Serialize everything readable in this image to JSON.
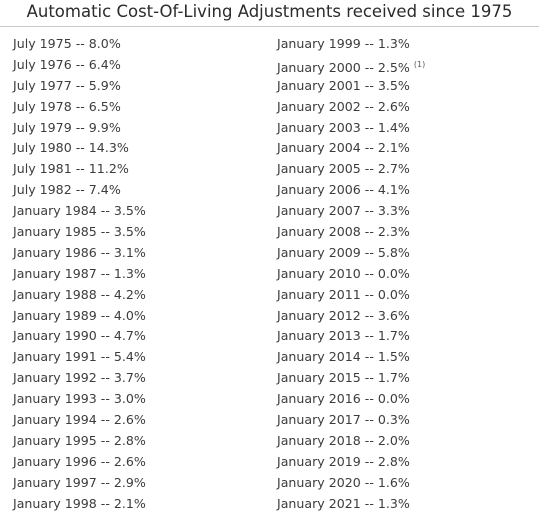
{
  "title": "Automatic Cost-Of-Living Adjustments received since 1975",
  "left_column": [
    "July 1975 -- 8.0%",
    "July 1976 -- 6.4%",
    "July 1977 -- 5.9%",
    "July 1978 -- 6.5%",
    "July 1979 -- 9.9%",
    "July 1980 -- 14.3%",
    "July 1981 -- 11.2%",
    "July 1982 -- 7.4%",
    "January 1984 -- 3.5%",
    "January 1985 -- 3.5%",
    "January 1986 -- 3.1%",
    "January 1987 -- 1.3%",
    "January 1988 -- 4.2%",
    "January 1989 -- 4.0%",
    "January 1990 -- 4.7%",
    "January 1991 -- 5.4%",
    "January 1992 -- 3.7%",
    "January 1993 -- 3.0%",
    "January 1994 -- 2.6%",
    "January 1995 -- 2.8%",
    "January 1996 -- 2.6%",
    "January 1997 -- 2.9%",
    "January 1998 -- 2.1%"
  ],
  "right_column": [
    "January 1999 -- 1.3%",
    "January 2000 -- 2.5%",
    "January 2001 -- 3.5%",
    "January 2002 -- 2.6%",
    "January 2003 -- 1.4%",
    "January 2004 -- 2.1%",
    "January 2005 -- 2.7%",
    "January 2006 -- 4.1%",
    "January 2007 -- 3.3%",
    "January 2008 -- 2.3%",
    "January 2009 -- 5.8%",
    "January 2010 -- 0.0%",
    "January 2011 -- 0.0%",
    "January 2012 -- 3.6%",
    "January 2013 -- 1.7%",
    "January 2014 -- 1.5%",
    "January 2015 -- 1.7%",
    "January 2016 -- 0.0%",
    "January 2017 -- 0.3%",
    "January 2018 -- 2.0%",
    "January 2019 -- 2.8%",
    "January 2020 -- 1.6%",
    "January 2021 -- 1.3%"
  ],
  "footnote": {
    "row_index": 1,
    "marker": "(1)"
  }
}
